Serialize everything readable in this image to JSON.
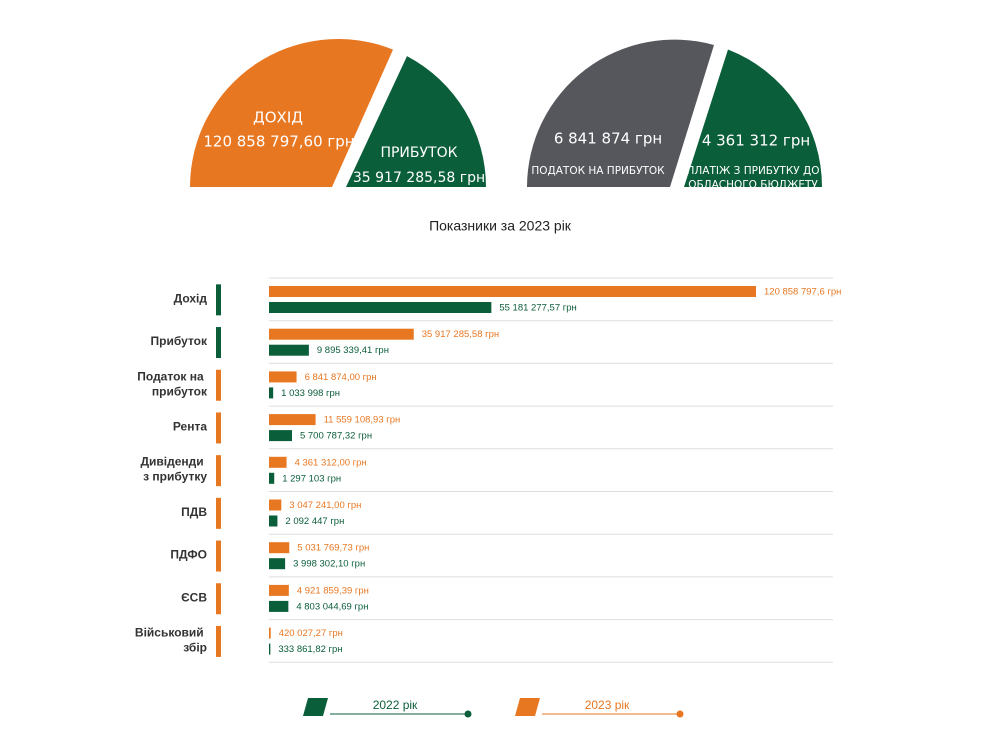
{
  "summary": {
    "left": [
      {
        "label": "ДОХІД",
        "amount": "120 858 797,60 грн"
      },
      {
        "label": "ПРИБУТОК",
        "amount": "35 917 285,58 грн"
      }
    ],
    "right": [
      {
        "amount": "6 841 874 грн",
        "label_lines": [
          "ПОДАТОК НА ПРИБУТОК"
        ]
      },
      {
        "amount": "4 361 312 грн",
        "label_lines": [
          "ПЛАТІЖ З ПРИБУТКУ ДО",
          "ОБЛАСНОГО БЮДЖЕТУ"
        ]
      }
    ]
  },
  "chart_data": {
    "type": "bar",
    "orientation": "horizontal",
    "title": "Показники за 2023 рік",
    "categories": [
      "Дохід",
      "Прибуток",
      "Податок на прибуток",
      "Рента",
      "Дивіденди з прибутку",
      "ПДВ",
      "ПДФО",
      "ЄСВ",
      "Військовий збір"
    ],
    "category_colors": [
      "#0b5e3a",
      "#0b5e3a",
      "#e87722",
      "#e87722",
      "#e87722",
      "#e87722",
      "#e87722",
      "#e87722",
      "#e87722"
    ],
    "series": [
      {
        "name": "2022 рік",
        "color": "#0b5e3a",
        "values": [
          55181277.57,
          9895339.41,
          1033998,
          5700787.32,
          1297103,
          2092447,
          3998302.1,
          4803044.69,
          333861.82
        ],
        "value_labels": [
          "55 181 277,57 грн",
          "9 895 339,41 грн",
          "1 033 998 грн",
          "5 700 787,32 грн",
          "1 297 103 грн",
          "2 092 447 грн",
          "3 998 302,10 грн",
          "4 803 044,69 грн",
          "333 861,82 грн"
        ]
      },
      {
        "name": "2023 рік",
        "color": "#e87722",
        "values": [
          120858797.6,
          35917285.58,
          6841874.0,
          11559108.93,
          4361312.0,
          3047241.0,
          5031769.73,
          4921859.39,
          420027.27
        ],
        "value_labels": [
          "120 858 797,6 грн",
          "35 917 285,58 грн",
          "6 841 874,00 грн",
          "11 559 108,93 грн",
          "4 361 312,00 грн",
          "3 047 241,00 грн",
          "5 031 769,73 грн",
          "4 921 859,39 грн",
          "420 027,27 грн"
        ]
      }
    ]
  }
}
